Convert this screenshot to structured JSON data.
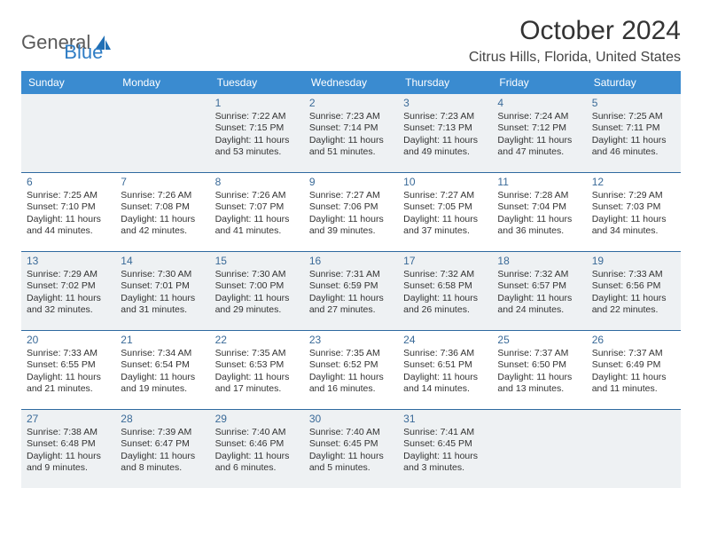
{
  "logo": {
    "text1": "General",
    "text2": "Blue"
  },
  "title": "October 2024",
  "location": "Citrus Hills, Florida, United States",
  "colors": {
    "header_bg": "#3a8bd0",
    "header_text": "#ffffff",
    "daynum": "#3a6a98",
    "divider": "#2f6aa0",
    "shade_bg": "#eef1f3",
    "logo_blue": "#2e7cc4",
    "logo_gray": "#5a5a5a"
  },
  "dow": [
    "Sunday",
    "Monday",
    "Tuesday",
    "Wednesday",
    "Thursday",
    "Friday",
    "Saturday"
  ],
  "weeks": [
    [
      {
        "n": "",
        "sr": "",
        "ss": "",
        "dl": ""
      },
      {
        "n": "",
        "sr": "",
        "ss": "",
        "dl": ""
      },
      {
        "n": "1",
        "sr": "Sunrise: 7:22 AM",
        "ss": "Sunset: 7:15 PM",
        "dl": "Daylight: 11 hours and 53 minutes."
      },
      {
        "n": "2",
        "sr": "Sunrise: 7:23 AM",
        "ss": "Sunset: 7:14 PM",
        "dl": "Daylight: 11 hours and 51 minutes."
      },
      {
        "n": "3",
        "sr": "Sunrise: 7:23 AM",
        "ss": "Sunset: 7:13 PM",
        "dl": "Daylight: 11 hours and 49 minutes."
      },
      {
        "n": "4",
        "sr": "Sunrise: 7:24 AM",
        "ss": "Sunset: 7:12 PM",
        "dl": "Daylight: 11 hours and 47 minutes."
      },
      {
        "n": "5",
        "sr": "Sunrise: 7:25 AM",
        "ss": "Sunset: 7:11 PM",
        "dl": "Daylight: 11 hours and 46 minutes."
      }
    ],
    [
      {
        "n": "6",
        "sr": "Sunrise: 7:25 AM",
        "ss": "Sunset: 7:10 PM",
        "dl": "Daylight: 11 hours and 44 minutes."
      },
      {
        "n": "7",
        "sr": "Sunrise: 7:26 AM",
        "ss": "Sunset: 7:08 PM",
        "dl": "Daylight: 11 hours and 42 minutes."
      },
      {
        "n": "8",
        "sr": "Sunrise: 7:26 AM",
        "ss": "Sunset: 7:07 PM",
        "dl": "Daylight: 11 hours and 41 minutes."
      },
      {
        "n": "9",
        "sr": "Sunrise: 7:27 AM",
        "ss": "Sunset: 7:06 PM",
        "dl": "Daylight: 11 hours and 39 minutes."
      },
      {
        "n": "10",
        "sr": "Sunrise: 7:27 AM",
        "ss": "Sunset: 7:05 PM",
        "dl": "Daylight: 11 hours and 37 minutes."
      },
      {
        "n": "11",
        "sr": "Sunrise: 7:28 AM",
        "ss": "Sunset: 7:04 PM",
        "dl": "Daylight: 11 hours and 36 minutes."
      },
      {
        "n": "12",
        "sr": "Sunrise: 7:29 AM",
        "ss": "Sunset: 7:03 PM",
        "dl": "Daylight: 11 hours and 34 minutes."
      }
    ],
    [
      {
        "n": "13",
        "sr": "Sunrise: 7:29 AM",
        "ss": "Sunset: 7:02 PM",
        "dl": "Daylight: 11 hours and 32 minutes."
      },
      {
        "n": "14",
        "sr": "Sunrise: 7:30 AM",
        "ss": "Sunset: 7:01 PM",
        "dl": "Daylight: 11 hours and 31 minutes."
      },
      {
        "n": "15",
        "sr": "Sunrise: 7:30 AM",
        "ss": "Sunset: 7:00 PM",
        "dl": "Daylight: 11 hours and 29 minutes."
      },
      {
        "n": "16",
        "sr": "Sunrise: 7:31 AM",
        "ss": "Sunset: 6:59 PM",
        "dl": "Daylight: 11 hours and 27 minutes."
      },
      {
        "n": "17",
        "sr": "Sunrise: 7:32 AM",
        "ss": "Sunset: 6:58 PM",
        "dl": "Daylight: 11 hours and 26 minutes."
      },
      {
        "n": "18",
        "sr": "Sunrise: 7:32 AM",
        "ss": "Sunset: 6:57 PM",
        "dl": "Daylight: 11 hours and 24 minutes."
      },
      {
        "n": "19",
        "sr": "Sunrise: 7:33 AM",
        "ss": "Sunset: 6:56 PM",
        "dl": "Daylight: 11 hours and 22 minutes."
      }
    ],
    [
      {
        "n": "20",
        "sr": "Sunrise: 7:33 AM",
        "ss": "Sunset: 6:55 PM",
        "dl": "Daylight: 11 hours and 21 minutes."
      },
      {
        "n": "21",
        "sr": "Sunrise: 7:34 AM",
        "ss": "Sunset: 6:54 PM",
        "dl": "Daylight: 11 hours and 19 minutes."
      },
      {
        "n": "22",
        "sr": "Sunrise: 7:35 AM",
        "ss": "Sunset: 6:53 PM",
        "dl": "Daylight: 11 hours and 17 minutes."
      },
      {
        "n": "23",
        "sr": "Sunrise: 7:35 AM",
        "ss": "Sunset: 6:52 PM",
        "dl": "Daylight: 11 hours and 16 minutes."
      },
      {
        "n": "24",
        "sr": "Sunrise: 7:36 AM",
        "ss": "Sunset: 6:51 PM",
        "dl": "Daylight: 11 hours and 14 minutes."
      },
      {
        "n": "25",
        "sr": "Sunrise: 7:37 AM",
        "ss": "Sunset: 6:50 PM",
        "dl": "Daylight: 11 hours and 13 minutes."
      },
      {
        "n": "26",
        "sr": "Sunrise: 7:37 AM",
        "ss": "Sunset: 6:49 PM",
        "dl": "Daylight: 11 hours and 11 minutes."
      }
    ],
    [
      {
        "n": "27",
        "sr": "Sunrise: 7:38 AM",
        "ss": "Sunset: 6:48 PM",
        "dl": "Daylight: 11 hours and 9 minutes."
      },
      {
        "n": "28",
        "sr": "Sunrise: 7:39 AM",
        "ss": "Sunset: 6:47 PM",
        "dl": "Daylight: 11 hours and 8 minutes."
      },
      {
        "n": "29",
        "sr": "Sunrise: 7:40 AM",
        "ss": "Sunset: 6:46 PM",
        "dl": "Daylight: 11 hours and 6 minutes."
      },
      {
        "n": "30",
        "sr": "Sunrise: 7:40 AM",
        "ss": "Sunset: 6:45 PM",
        "dl": "Daylight: 11 hours and 5 minutes."
      },
      {
        "n": "31",
        "sr": "Sunrise: 7:41 AM",
        "ss": "Sunset: 6:45 PM",
        "dl": "Daylight: 11 hours and 3 minutes."
      },
      {
        "n": "",
        "sr": "",
        "ss": "",
        "dl": ""
      },
      {
        "n": "",
        "sr": "",
        "ss": "",
        "dl": ""
      }
    ]
  ],
  "shaded_weeks": [
    0,
    2,
    4
  ]
}
